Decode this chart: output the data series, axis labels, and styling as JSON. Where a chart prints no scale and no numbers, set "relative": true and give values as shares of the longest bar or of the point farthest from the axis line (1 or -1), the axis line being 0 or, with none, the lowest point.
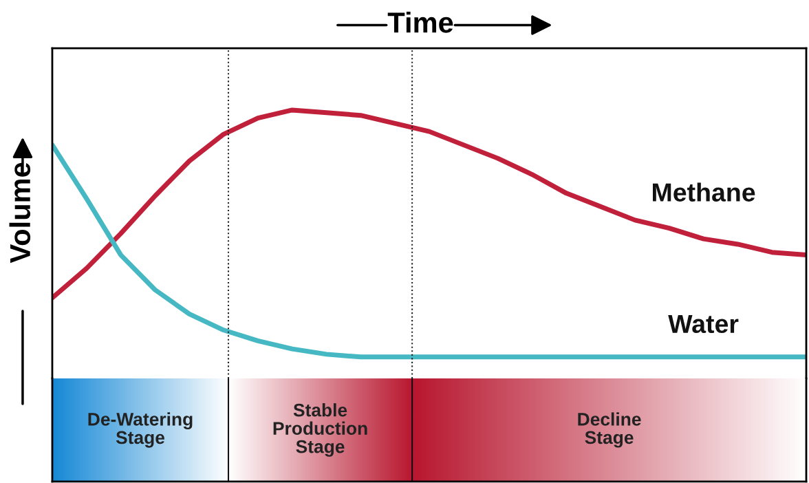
{
  "chart_data": [
    {
      "type": "line",
      "relative": true,
      "xlabel": "Time",
      "ylabel": "Volume",
      "categories": [
        null,
        null,
        null,
        null,
        null,
        null,
        null,
        null,
        null,
        null,
        null,
        null,
        null,
        null,
        null,
        null,
        null,
        null,
        null,
        null,
        null,
        null,
        null
      ],
      "grid": false,
      "marker": "none",
      "line_style": "solid",
      "series": [
        {
          "name": "Methane",
          "color": "#c0203a",
          "values": [
            0.3,
            0.41,
            0.54,
            0.68,
            0.81,
            0.91,
            0.97,
            1,
            0.99,
            0.98,
            0.95,
            0.92,
            0.87,
            0.82,
            0.76,
            0.69,
            0.64,
            0.59,
            0.56,
            0.52,
            0.5,
            0.47,
            0.46
          ]
        },
        {
          "name": "Water",
          "color": "#45b8c4",
          "values": [
            0.87,
            0.67,
            0.46,
            0.33,
            0.24,
            0.18,
            0.14,
            0.11,
            0.09,
            0.08,
            0.08,
            0.08,
            0.08,
            0.08,
            0.08,
            0.08,
            0.08,
            0.08,
            0.08,
            0.08,
            0.08,
            0.08,
            0.08
          ]
        }
      ]
    },
    {
      "type": "other",
      "annotations": [
        "De-Watering\nStage",
        "Stable\nProduction\nStage",
        "Decline\nStage"
      ],
      "colors": [
        "#1689d6",
        "#b8172f",
        "#b8172f"
      ]
    }
  ]
}
